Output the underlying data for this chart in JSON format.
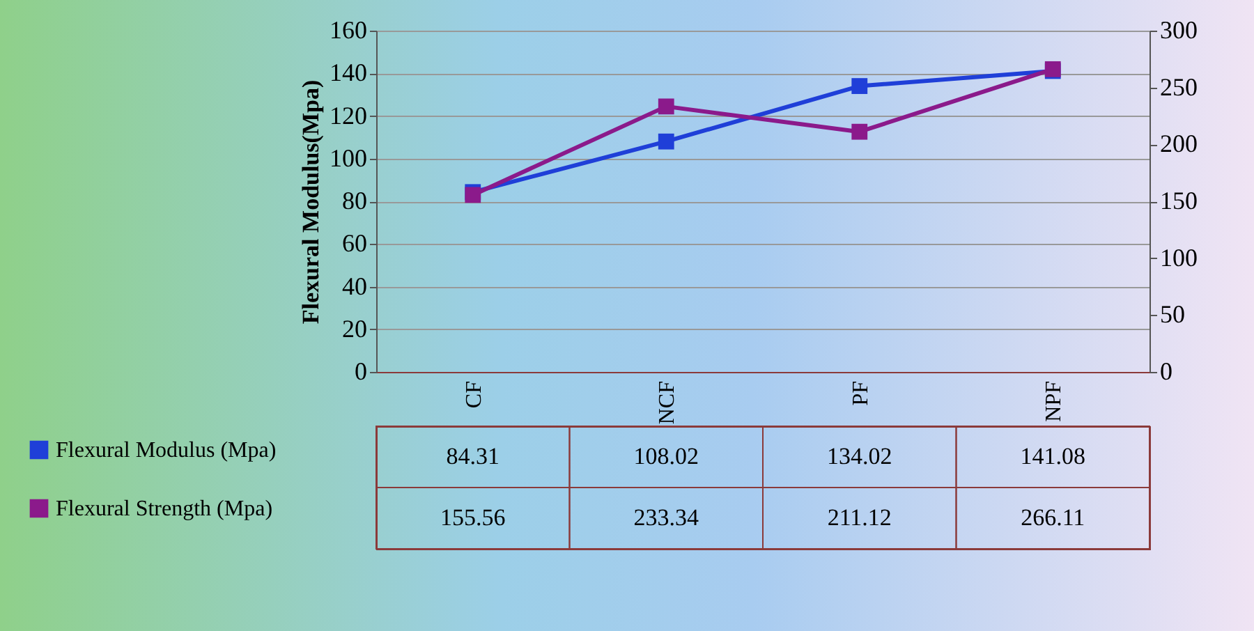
{
  "chart_data": {
    "type": "line",
    "ylabel": "Flexural Modulus(Mpa)",
    "categories": [
      "CF",
      "NCF",
      "PF",
      "NPF"
    ],
    "series": [
      {
        "name": "Flexural Modulus (Mpa)",
        "color": "#1f3fd8",
        "values": [
          84.31,
          108.02,
          134.02,
          141.08
        ]
      },
      {
        "name": "Flexural Strength (Mpa)",
        "color": "#8b1a8b",
        "values": [
          155.56,
          233.34,
          211.12,
          266.11
        ],
        "axis": "y2"
      }
    ],
    "ylim": [
      0,
      160
    ],
    "yticks": [
      0,
      20,
      40,
      60,
      80,
      100,
      120,
      140,
      160
    ],
    "y2lim": [
      0,
      300
    ],
    "y2ticks": [
      0,
      50,
      100,
      150,
      200,
      250,
      300
    ],
    "grid": "y",
    "marker": "square",
    "line_style": "solid",
    "legend": "bottom left",
    "data_labels": true
  }
}
